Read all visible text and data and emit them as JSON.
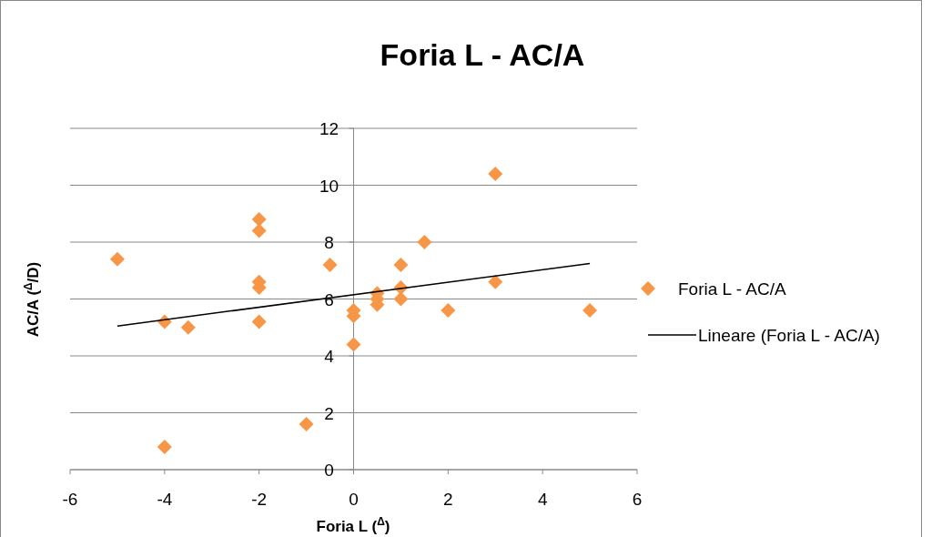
{
  "chart_data": {
    "type": "scatter",
    "title": "Foria L - AC/A",
    "xlabel": "Foria L ($^{Δ}$)",
    "ylabel": "AC/A ($^{Δ}$/D)",
    "x": [
      -5,
      -4,
      -4,
      -3.5,
      -2,
      -2,
      -2,
      -2,
      -2,
      -1,
      -0.5,
      0,
      0,
      0,
      0.5,
      0.5,
      0.5,
      1,
      1,
      1,
      1.5,
      2,
      3,
      3,
      5
    ],
    "series": [
      {
        "name": "Foria L - AC/A",
        "color": "#f79646",
        "marker": "diamond",
        "values": [
          7.4,
          5.2,
          0.8,
          5.0,
          8.8,
          8.4,
          6.6,
          6.4,
          5.2,
          1.6,
          7.2,
          5.6,
          5.4,
          4.4,
          6.2,
          6.0,
          5.8,
          7.2,
          6.4,
          6.0,
          8.0,
          5.6,
          10.4,
          6.6,
          5.6
        ]
      },
      {
        "name": "Lineare (Foria L - AC/A)",
        "type": "line",
        "color": "#000000",
        "x": [
          -5,
          5
        ],
        "values": [
          5.05,
          7.25
        ]
      }
    ],
    "xlim": [
      -6,
      6
    ],
    "ylim": [
      0,
      12
    ],
    "xticks": [
      -6,
      -4,
      -2,
      0,
      2,
      4,
      6
    ],
    "yticks": [
      0,
      2,
      4,
      6,
      8,
      10,
      12
    ],
    "grid": "y",
    "legend": "right"
  }
}
